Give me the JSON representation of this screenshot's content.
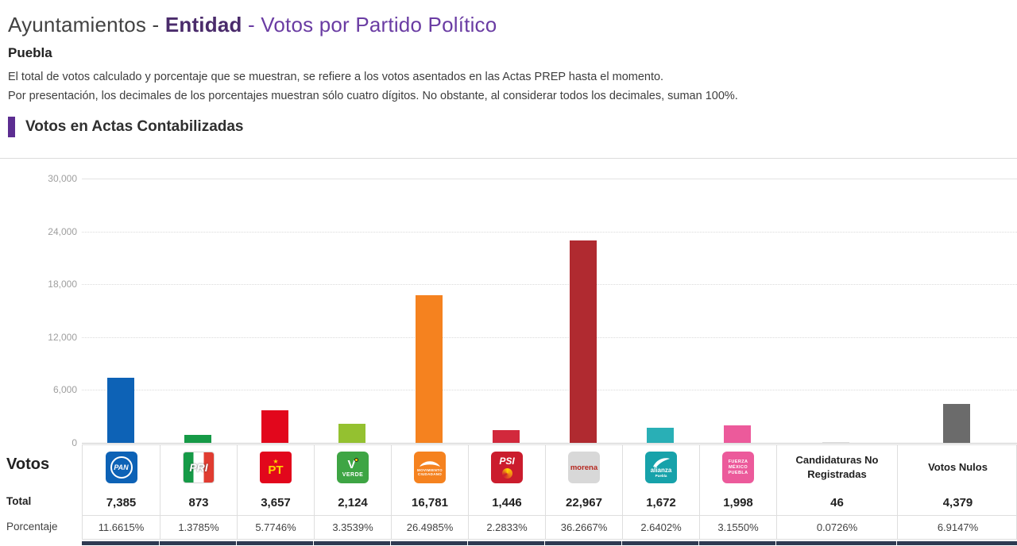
{
  "header": {
    "title_part1": "Ayuntamientos - ",
    "title_part2": "Entidad",
    "title_part3": " - Votos por Partido Político",
    "subtitle": "Puebla",
    "description_line1": "El total de votos calculado y porcentaje que se muestran, se refiere a los votos asentados en las Actas PREP hasta el momento.",
    "description_line2": "Por presentación, los decimales de los porcentajes muestran sólo cuatro dígitos. No obstante, al considerar todos los decimales, suman 100%.",
    "section_title": "Votos en Actas Contabilizadas"
  },
  "row_labels": {
    "votes": "Votos",
    "total": "Total",
    "percentage": "Porcentaje"
  },
  "chart_data": {
    "type": "bar",
    "title": "Votos en Actas Contabilizadas",
    "xlabel": "",
    "ylabel": "Votos",
    "ylim": [
      0,
      30000
    ],
    "yticks": [
      "30,000",
      "24,000",
      "18,000",
      "12,000",
      "6,000",
      "0"
    ],
    "grid": "horizontal-dotted",
    "legend": "none",
    "categories": [
      "PAN",
      "PRI",
      "PT",
      "VERDE",
      "Movimiento Ciudadano",
      "PSI",
      "morena",
      "Nueva Alianza Puebla",
      "Fuerza México Puebla",
      "Candidaturas No Registradas",
      "Votos Nulos"
    ],
    "values": [
      7385,
      873,
      3657,
      2124,
      16781,
      1446,
      22967,
      1672,
      1998,
      46,
      4379
    ],
    "percentages": [
      11.6615,
      1.3785,
      5.7746,
      3.3539,
      26.4985,
      2.2833,
      36.2667,
      2.6402,
      3.155,
      0.0726,
      6.9147
    ],
    "colors": [
      "#0D62B6",
      "#169A47",
      "#E2071C",
      "#94C130",
      "#F5821F",
      "#D2293C",
      "#B02A30",
      "#29AFB6",
      "#EC5A9B",
      "#E0E0E0",
      "#6B6B6B"
    ]
  },
  "parties": [
    {
      "name": "PAN",
      "logo_text": "PAN",
      "total": "7,385",
      "percentage": "11.6615%"
    },
    {
      "name": "PRI",
      "logo_text": "PRI",
      "total": "873",
      "percentage": "1.3785%"
    },
    {
      "name": "PT",
      "logo_star": "★",
      "logo_text": "PT",
      "total": "3,657",
      "percentage": "5.7746%"
    },
    {
      "name": "VERDE",
      "logo_v": "V",
      "logo_text": "VERDE",
      "total": "2,124",
      "percentage": "3.3539%"
    },
    {
      "name": "Movimiento Ciudadano",
      "logo_line1": "MOVIMIENTO",
      "logo_line2": "CIUDADANO",
      "total": "16,781",
      "percentage": "26.4985%"
    },
    {
      "name": "PSI",
      "logo_text": "PSI",
      "total": "1,446",
      "percentage": "2.2833%"
    },
    {
      "name": "morena",
      "logo_text": "morena",
      "total": "22,967",
      "percentage": "36.2667%"
    },
    {
      "name": "Nueva Alianza Puebla",
      "logo_text": "alianza",
      "logo_sub": "Puebla",
      "total": "1,672",
      "percentage": "2.6402%"
    },
    {
      "name": "Fuerza México Puebla",
      "logo_line1": "FUERZA",
      "logo_line2": "MÉXICO",
      "logo_line3": "PUEBLA",
      "total": "1,998",
      "percentage": "3.1550%"
    },
    {
      "name": "Candidaturas No Registradas",
      "header_text": "Candidaturas No Registradas",
      "total": "46",
      "percentage": "0.0726%"
    },
    {
      "name": "Votos Nulos",
      "header_text": "Votos Nulos",
      "total": "4,379",
      "percentage": "6.9147%"
    }
  ]
}
